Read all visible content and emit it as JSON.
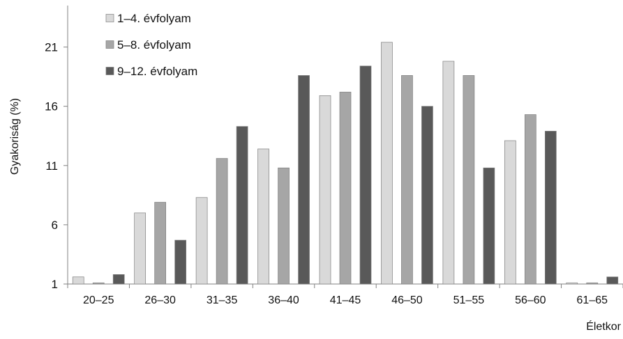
{
  "chart_data": {
    "type": "bar",
    "title": "",
    "ylabel": "Gyakoriság (%)",
    "xlabel": "Életkor",
    "categories": [
      "20–25",
      "26–30",
      "31–35",
      "36–40",
      "41–45",
      "46–50",
      "51–55",
      "56–60",
      "61–65"
    ],
    "yticks": [
      1,
      6,
      11,
      16,
      21
    ],
    "ylim": [
      1,
      24.5
    ],
    "grid": false,
    "legend_position": "top-left",
    "series": [
      {
        "name": "1–4. évfolyam",
        "color": "#d9d9d9",
        "values": [
          1.6,
          7.0,
          8.3,
          12.4,
          16.9,
          21.4,
          19.8,
          13.1,
          1.1
        ]
      },
      {
        "name": "5–8. évfolyam",
        "color": "#a6a6a6",
        "values": [
          1.1,
          7.9,
          11.6,
          10.8,
          17.2,
          18.6,
          18.6,
          15.3,
          1.1
        ]
      },
      {
        "name": "9–12. évfolyam",
        "color": "#595959",
        "values": [
          1.8,
          4.7,
          14.3,
          18.6,
          19.4,
          16.0,
          10.8,
          13.9,
          1.6
        ]
      }
    ]
  }
}
